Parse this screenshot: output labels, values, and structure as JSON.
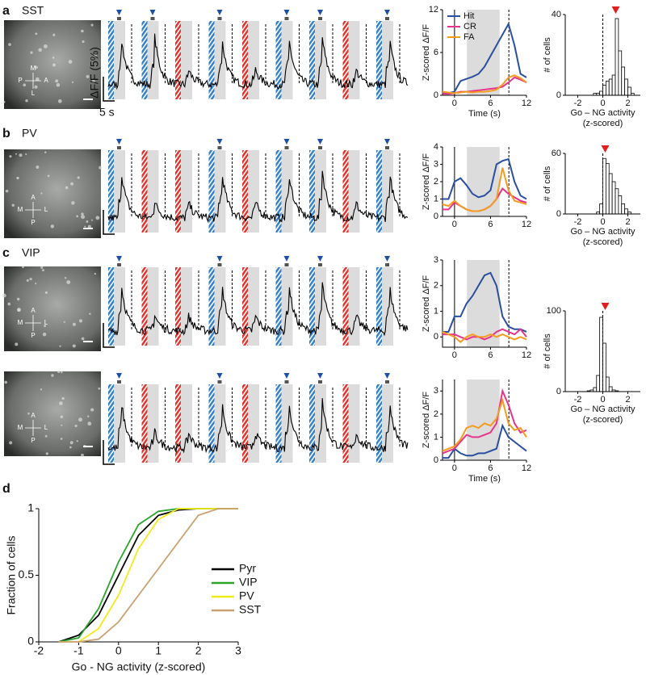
{
  "panels": [
    {
      "label": "a",
      "title": "SST",
      "compass": [
        "M",
        "P",
        "A",
        "L"
      ],
      "scale_y": "ΔF/F (5%)",
      "scale_x": "5 s",
      "avg": {
        "ylabel": "Z-scored ΔF/F",
        "xlabel": "Time (s)",
        "xlim": [
          -2,
          12
        ],
        "xticks": [
          0,
          6,
          12
        ],
        "ylim": [
          0,
          12
        ],
        "yticks": [
          0,
          6,
          12
        ],
        "legend": "upper left",
        "x": [
          -2,
          -1,
          0,
          1,
          2,
          3,
          4,
          5,
          6,
          7,
          8,
          9,
          10,
          11,
          12
        ],
        "series": [
          {
            "name": "Hit",
            "color": "#2b4fa0",
            "values": [
              0.3,
              0.3,
              0.5,
              2,
              2.3,
              2.6,
              3,
              4,
              5.5,
              7,
              8.5,
              10,
              7,
              3,
              2.5
            ]
          },
          {
            "name": "CR",
            "color": "#e8338a",
            "values": [
              0.2,
              0.2,
              0.3,
              0.5,
              0.5,
              0.6,
              0.7,
              0.8,
              0.9,
              1,
              1.2,
              1.8,
              2.5,
              2.2,
              1.8
            ]
          },
          {
            "name": "FA",
            "color": "#f39c1e",
            "values": [
              0.5,
              0.4,
              0.3,
              0.4,
              0.5,
              0.4,
              0.5,
              0.5,
              0.6,
              0.8,
              1.5,
              2.5,
              2.8,
              2.4,
              1.8
            ]
          }
        ]
      },
      "hist": {
        "ylabel": "# of cells",
        "xlabel": "Go – NG activity",
        "xlabel2": "(z-scored)",
        "xlim": [
          -3,
          3
        ],
        "xticks": [
          -2,
          0,
          2
        ],
        "ylim": [
          0,
          40
        ],
        "yticks": [
          0,
          40
        ],
        "bins": [
          -2.5,
          -2.25,
          -2,
          -1.75,
          -1.5,
          -1.25,
          -1,
          -0.75,
          -0.5,
          -0.25,
          0,
          0.25,
          0.5,
          0.75,
          1,
          1.25,
          1.5,
          1.75,
          2,
          2.25,
          2.5
        ],
        "counts": [
          0,
          0,
          0,
          0,
          0,
          0,
          0,
          1,
          1,
          2,
          5,
          7,
          8,
          10,
          38,
          22,
          14,
          8,
          4,
          1
        ]
      }
    },
    {
      "label": "b",
      "title": "PV",
      "compass": [
        "A",
        "M",
        "L",
        "P"
      ],
      "avg": {
        "ylabel": "Z-scored ΔF/F",
        "xlim": [
          -2,
          12
        ],
        "xticks": [
          0,
          6,
          12
        ],
        "ylim": [
          0,
          4
        ],
        "yticks": [
          0,
          1,
          2,
          3,
          4
        ],
        "x": [
          -2,
          -1,
          0,
          1,
          2,
          3,
          4,
          5,
          6,
          7,
          8,
          9,
          10,
          11,
          12
        ],
        "series": [
          {
            "color": "#2b4fa0",
            "values": [
              1,
              1,
              2,
              2.2,
              1.8,
              1.3,
              1.1,
              1.2,
              1.5,
              3,
              3.2,
              3.3,
              2,
              1.2,
              1
            ]
          },
          {
            "color": "#e8338a",
            "values": [
              0.4,
              0.4,
              0.8,
              0.6,
              0.4,
              0.3,
              0.3,
              0.4,
              0.6,
              1,
              1.6,
              1.3,
              1.1,
              0.9,
              0.8
            ]
          },
          {
            "color": "#f39c1e",
            "values": [
              0.7,
              0.6,
              0.9,
              0.6,
              0.4,
              0.3,
              0.3,
              0.4,
              0.6,
              1,
              2.8,
              1.5,
              0.9,
              0.8,
              0.7
            ]
          }
        ]
      },
      "hist": {
        "ylabel": "# of cells",
        "xlabel": "Go – NG activity",
        "xlabel2": "(z-scored)",
        "xlim": [
          -3,
          3
        ],
        "xticks": [
          -2,
          0,
          2
        ],
        "ylim": [
          0,
          60
        ],
        "yticks": [
          0,
          60
        ],
        "bins": [
          -2.5,
          -2.25,
          -2,
          -1.75,
          -1.5,
          -1.25,
          -1,
          -0.75,
          -0.5,
          -0.25,
          0,
          0.25,
          0.5,
          0.75,
          1,
          1.25,
          1.5,
          1.75,
          2,
          2.25,
          2.5
        ],
        "counts": [
          0,
          0,
          0,
          0,
          0,
          0,
          0,
          0,
          2,
          10,
          55,
          50,
          40,
          32,
          25,
          18,
          10,
          5,
          2,
          0
        ]
      }
    },
    {
      "label": "c",
      "title": "VIP",
      "compass": [
        "A",
        "M",
        "L",
        "P"
      ],
      "avg": {
        "ylabel": "Z-scored ΔF/F",
        "xlim": [
          -2,
          12
        ],
        "xticks": [
          0,
          6,
          12
        ],
        "ylim": [
          -0.4,
          3
        ],
        "yticks": [
          0,
          1,
          2,
          3
        ],
        "x": [
          -2,
          -1,
          0,
          1,
          2,
          3,
          4,
          5,
          6,
          7,
          8,
          9,
          10,
          11,
          12
        ],
        "series": [
          {
            "color": "#2b4fa0",
            "values": [
              0.2,
              0.2,
              0.8,
              0.8,
              1.3,
              1.6,
              2,
              2.4,
              2.5,
              2,
              0.8,
              0.4,
              0.3,
              0.3,
              0.2
            ]
          },
          {
            "color": "#e8338a",
            "values": [
              0.1,
              0.1,
              0.1,
              0,
              -0.1,
              0,
              0,
              -0.1,
              0,
              0.2,
              0.3,
              0.2,
              0.1,
              0.3,
              0
            ]
          },
          {
            "color": "#f39c1e",
            "values": [
              0.2,
              0.1,
              0,
              -0.2,
              0,
              0.1,
              0,
              0,
              0.1,
              0,
              0.1,
              0,
              -0.1,
              0,
              -0.1
            ]
          }
        ]
      },
      "hist": {
        "ylabel": "# of cells",
        "xlabel": "Go – NG activity",
        "xlabel2": "(z-scored)",
        "xlim": [
          -3,
          3
        ],
        "xticks": [
          -2,
          0,
          2
        ],
        "ylim": [
          0,
          100
        ],
        "yticks": [
          0,
          100
        ],
        "bins": [
          -2.5,
          -2.25,
          -2,
          -1.75,
          -1.5,
          -1.25,
          -1,
          -0.75,
          -0.5,
          -0.25,
          0,
          0.25,
          0.5,
          0.75,
          1,
          1.25,
          1.5,
          1.75,
          2,
          2.25,
          2.5
        ],
        "counts": [
          0,
          0,
          0,
          0,
          0,
          1,
          2,
          5,
          20,
          92,
          60,
          18,
          6,
          2,
          1,
          0,
          0,
          0,
          0,
          0
        ]
      }
    },
    {
      "compass": [
        "A",
        "M",
        "L",
        "P"
      ],
      "avg": {
        "ylabel": "Z-scored ΔF/F",
        "xlabel": "Time (s)",
        "xlim": [
          -2,
          12
        ],
        "xticks": [
          0,
          6,
          12
        ],
        "ylim": [
          0,
          3.5
        ],
        "yticks": [
          0,
          1,
          2,
          3
        ],
        "x": [
          -2,
          -1,
          0,
          1,
          2,
          3,
          4,
          5,
          6,
          7,
          8,
          9,
          10,
          11,
          12
        ],
        "series": [
          {
            "color": "#2b4fa0",
            "values": [
              0.1,
              0.1,
              0.5,
              0.3,
              0.2,
              0.2,
              0.3,
              0.3,
              0.4,
              0.5,
              1.5,
              1,
              0.8,
              0.6,
              0.4
            ]
          },
          {
            "color": "#e8338a",
            "values": [
              0.3,
              0.4,
              0.5,
              0.8,
              1.1,
              1,
              1,
              1.1,
              1.2,
              1.6,
              3,
              2.4,
              1.6,
              1.2,
              1.3
            ]
          },
          {
            "color": "#f39c1e",
            "values": [
              0.4,
              0.5,
              0.6,
              0.9,
              1.4,
              1.5,
              1.4,
              1.6,
              1.5,
              1.8,
              2.6,
              1.6,
              1.3,
              1.4,
              1
            ]
          }
        ]
      }
    }
  ],
  "cdf": {
    "label": "d",
    "type": "line",
    "ylabel": "Fraction of cells",
    "xlabel": "Go - NG activity (z-scored)",
    "xlim": [
      -2,
      3
    ],
    "xticks": [
      -2,
      -1,
      0,
      1,
      2,
      3
    ],
    "ylim": [
      0,
      1
    ],
    "yticks": [
      0,
      0.5,
      1
    ],
    "x": [
      -1.5,
      -1,
      -0.5,
      0,
      0.5,
      1,
      1.5,
      2,
      2.5,
      3
    ],
    "series": [
      {
        "name": "Pyr",
        "color": "#000000",
        "values": [
          0,
          0.05,
          0.2,
          0.5,
          0.8,
          0.95,
          0.99,
          1,
          1,
          1
        ]
      },
      {
        "name": "VIP",
        "color": "#2aa52a",
        "values": [
          0,
          0.03,
          0.25,
          0.6,
          0.88,
          0.98,
          1,
          1,
          1,
          1
        ]
      },
      {
        "name": "PV",
        "color": "#f2ea1a",
        "values": [
          0,
          0,
          0.1,
          0.35,
          0.7,
          0.92,
          1,
          1,
          1,
          1
        ]
      },
      {
        "name": "SST",
        "color": "#c9a070",
        "values": [
          0,
          0,
          0.02,
          0.15,
          0.35,
          0.55,
          0.75,
          0.95,
          1,
          1
        ]
      }
    ]
  }
}
